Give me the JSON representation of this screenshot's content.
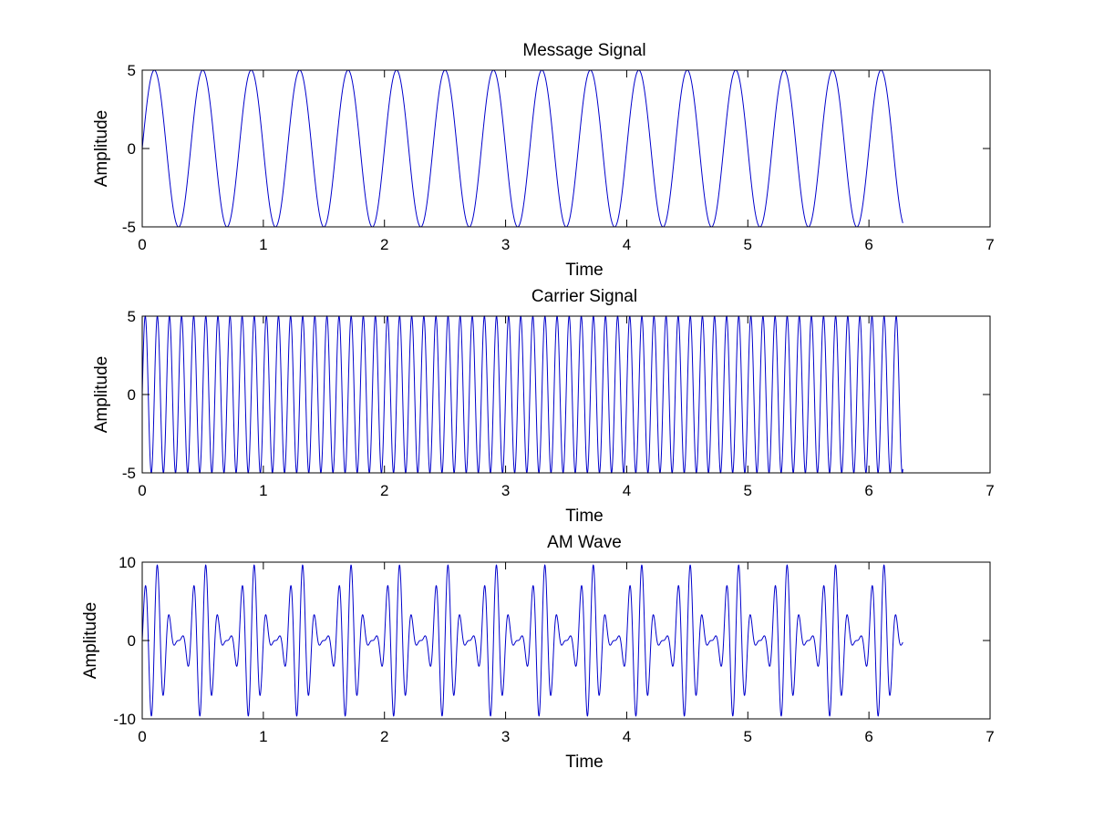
{
  "chart_data": [
    {
      "type": "line",
      "title": "Message Signal",
      "xlabel": "Time",
      "ylabel": "Amplitude",
      "xlim": [
        0,
        7
      ],
      "ylim": [
        -5,
        5
      ],
      "xticks": [
        0,
        1,
        2,
        3,
        4,
        5,
        6,
        7
      ],
      "yticks": [
        -5,
        0,
        5
      ],
      "grid": false,
      "color": "#0000cc",
      "series": [
        {
          "function": "5*sin(2*pi*2.5*t)",
          "t_start": 0,
          "t_end": 6.28,
          "amplitude": 5,
          "frequency": 2.5
        }
      ]
    },
    {
      "type": "line",
      "title": "Carrier Signal",
      "xlabel": "Time",
      "ylabel": "Amplitude",
      "xlim": [
        0,
        7
      ],
      "ylim": [
        -5,
        5
      ],
      "xticks": [
        0,
        1,
        2,
        3,
        4,
        5,
        6,
        7
      ],
      "yticks": [
        -5,
        0,
        5
      ],
      "grid": false,
      "color": "#0000cc",
      "series": [
        {
          "function": "5*sin(2*pi*10*t)",
          "t_start": 0,
          "t_end": 6.28,
          "amplitude": 5,
          "frequency": 10
        }
      ]
    },
    {
      "type": "line",
      "title": "AM Wave",
      "xlabel": "Time",
      "ylabel": "Amplitude",
      "xlim": [
        0,
        7
      ],
      "ylim": [
        -10,
        10
      ],
      "xticks": [
        0,
        1,
        2,
        3,
        4,
        5,
        6,
        7
      ],
      "yticks": [
        -10,
        0,
        10
      ],
      "grid": false,
      "color": "#0000cc",
      "series": [
        {
          "function": "5*sin(2*pi*10*t) + 2.5*cos(2*pi*7.5*t) - 2.5*cos(2*pi*12.5*t)",
          "t_start": 0,
          "t_end": 6.28,
          "carrier_amplitude": 5,
          "carrier_frequency": 10,
          "message_frequency": 2.5,
          "modulation_index": 1
        }
      ]
    }
  ]
}
